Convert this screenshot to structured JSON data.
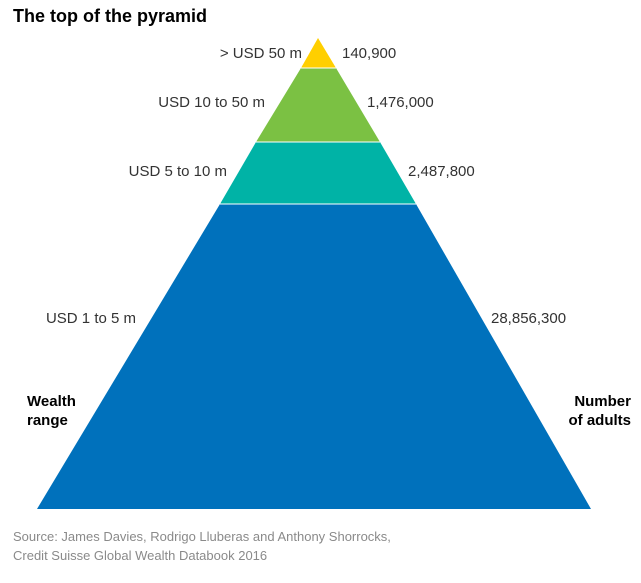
{
  "title": "The top of the pyramid",
  "axis_titles": {
    "left_line1": "Wealth",
    "left_line2": "range",
    "right_line1": "Number",
    "right_line2": "of adults"
  },
  "tiers": [
    {
      "range": "> USD 50 m",
      "adults": "140,900",
      "color": "#ffcf00"
    },
    {
      "range": "USD 10 to 50 m",
      "adults": "1,476,000",
      "color": "#7bc143"
    },
    {
      "range": "USD 5 to 10 m",
      "adults": "2,487,800",
      "color": "#00b3a6"
    },
    {
      "range": "USD 1 to 5 m",
      "adults": "28,856,300",
      "color": "#0071bc"
    }
  ],
  "source": {
    "line1": "Source: James Davies, Rodrigo Lluberas and Anthony Shorrocks,",
    "line2": "Credit Suisse Global Wealth Databook 2016"
  }
}
